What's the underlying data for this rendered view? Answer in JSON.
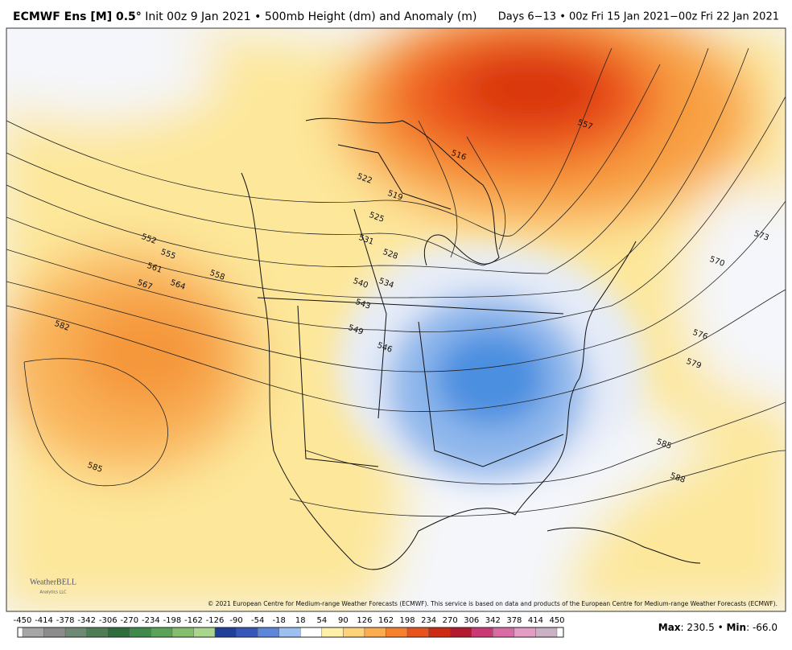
{
  "header": {
    "title_bold": "ECMWF Ens [M] 0.5°",
    "title": "Init 00z 9 Jan 2021 • 500mb Height (dm) and Anomaly (m)",
    "valid": "Days 6−13 • 00z Fri 15 Jan 2021−00z Fri 22 Jan 2021"
  },
  "contour_labels": [
    552,
    555,
    561,
    567,
    564,
    558,
    582,
    585,
    522,
    519,
    516,
    525,
    531,
    528,
    534,
    540,
    543,
    549,
    546,
    557,
    573,
    570,
    576,
    579,
    585,
    588
  ],
  "logo": {
    "name": "WeatherBELL",
    "sub": "Analytics LLC"
  },
  "copyright": "© 2021 European Centre for Medium-range Weather Forecasts (ECMWF). This service is based on data and products of the European Centre for Medium-range Weather Forecasts (ECMWF).",
  "colorbar": {
    "ticks": [
      -450,
      -414,
      -378,
      -342,
      -306,
      -270,
      -234,
      -198,
      -162,
      -126,
      -90,
      -54,
      -18,
      18,
      54,
      90,
      126,
      162,
      198,
      234,
      270,
      306,
      342,
      378,
      414,
      450
    ]
  },
  "stats": {
    "max_label": "Max",
    "max": "230.5",
    "min_label": "Min",
    "min": "-66.0"
  }
}
